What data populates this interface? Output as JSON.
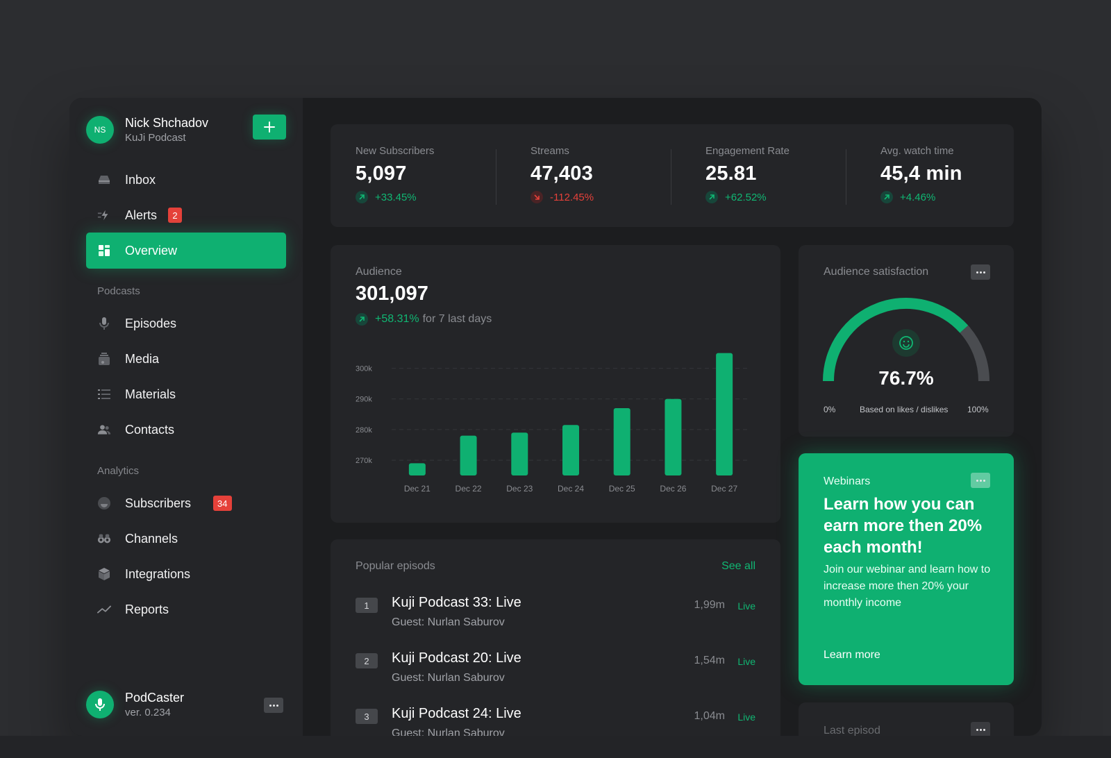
{
  "profile": {
    "initials": "NS",
    "name": "Nick Shchadov",
    "subtitle": "KuJi Podcast"
  },
  "nav": {
    "inbox": "Inbox",
    "alerts": "Alerts",
    "alerts_badge": "2",
    "overview": "Overview",
    "podcasts_section": "Podcasts",
    "episodes": "Episodes",
    "media": "Media",
    "materials": "Materials",
    "contacts": "Contacts",
    "analytics_section": "Analytics",
    "subscribers": "Subscribers",
    "subscribers_badge": "34",
    "channels": "Channels",
    "integrations": "Integrations",
    "reports": "Reports"
  },
  "footer": {
    "name": "PodCaster",
    "version": "ver. 0.234"
  },
  "stats": [
    {
      "title": "New Subscribers",
      "value": "5,097",
      "delta": "+33.45%",
      "trend": "up"
    },
    {
      "title": "Streams",
      "value": "47,403",
      "delta": "-112.45%",
      "trend": "down"
    },
    {
      "title": "Engagement Rate",
      "value": "25.81",
      "delta": "+62.52%",
      "trend": "up"
    },
    {
      "title": "Avg. watch time",
      "value": "45,4 min",
      "delta": "+4.46%",
      "trend": "up"
    }
  ],
  "audience": {
    "title": "Audience",
    "value": "301,097",
    "delta": "+58.31%",
    "delta_note": "for 7 last days"
  },
  "chart_data": {
    "type": "bar",
    "categories": [
      "Dec 21",
      "Dec 22",
      "Dec 23",
      "Dec 24",
      "Dec 25",
      "Dec 26",
      "Dec 27"
    ],
    "values": [
      269,
      278,
      279,
      281.5,
      287,
      290,
      305
    ],
    "ylim": [
      265,
      304
    ],
    "yticks": [
      270,
      280,
      290,
      300
    ],
    "ytick_labels": [
      "270k",
      "280k",
      "290k",
      "300k"
    ],
    "grid": true,
    "color": "#0fb071"
  },
  "satisfaction": {
    "title": "Audience satisfaction",
    "value": "76.7%",
    "fraction": 0.767,
    "min_label": "0%",
    "note": "Based on likes / dislikes",
    "max_label": "100%"
  },
  "webinar": {
    "tag": "Webinars",
    "title": "Learn how you can earn more then 20% each month!",
    "text": "Join our webinar and learn how to increase more then 20% your monthly income",
    "link": "Learn more"
  },
  "last_episode": {
    "title": "Last episod"
  },
  "popular": {
    "title": "Popular episods",
    "see_all": "See all",
    "episodes": [
      {
        "rank": "1",
        "title": "Kuji Podcast 33: Live",
        "guest": "Guest: Nurlan Saburov",
        "plays": "1,99m",
        "status": "Live"
      },
      {
        "rank": "2",
        "title": "Kuji Podcast 20: Live",
        "guest": "Guest: Nurlan Saburov",
        "plays": "1,54m",
        "status": "Live"
      },
      {
        "rank": "3",
        "title": "Kuji Podcast 24: Live",
        "guest": "Guest: Nurlan Saburov",
        "plays": "1,04m",
        "status": "Live"
      }
    ]
  },
  "colors": {
    "accent": "#0fb071",
    "danger": "#e5413a",
    "background": "#2c2d30",
    "panel": "#242528"
  }
}
